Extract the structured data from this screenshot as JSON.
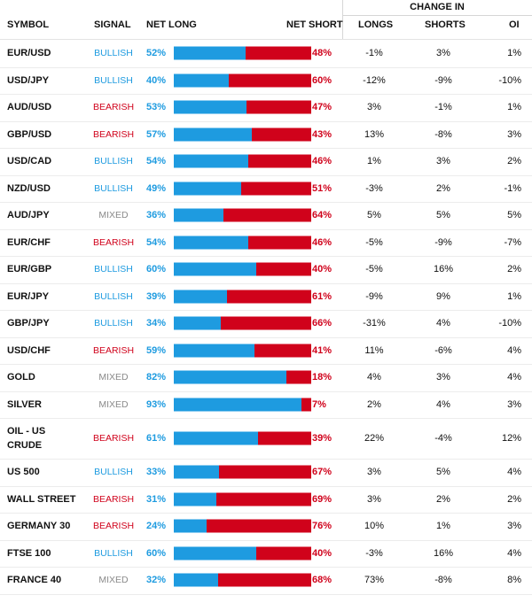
{
  "header": {
    "change_in": "CHANGE IN",
    "symbol": "SYMBOL",
    "signal": "SIGNAL",
    "net_long": "NET LONG",
    "net_short": "NET SHORT",
    "longs": "LONGS",
    "shorts": "SHORTS",
    "oi": "OI"
  },
  "colors": {
    "long": "#1e9be0",
    "short": "#d0021b",
    "bullish": "#1e9be0",
    "bearish": "#d0021b",
    "mixed": "#8a8a8a"
  },
  "rows": [
    {
      "symbol": "EUR/USD",
      "signal": "BULLISH",
      "net_long": "52%",
      "long_pct": 52,
      "net_short": "48%",
      "longs": "-1%",
      "shorts": "3%",
      "oi": "1%"
    },
    {
      "symbol": "USD/JPY",
      "signal": "BULLISH",
      "net_long": "40%",
      "long_pct": 40,
      "net_short": "60%",
      "longs": "-12%",
      "shorts": "-9%",
      "oi": "-10%"
    },
    {
      "symbol": "AUD/USD",
      "signal": "BEARISH",
      "net_long": "53%",
      "long_pct": 53,
      "net_short": "47%",
      "longs": "3%",
      "shorts": "-1%",
      "oi": "1%"
    },
    {
      "symbol": "GBP/USD",
      "signal": "BEARISH",
      "net_long": "57%",
      "long_pct": 57,
      "net_short": "43%",
      "longs": "13%",
      "shorts": "-8%",
      "oi": "3%"
    },
    {
      "symbol": "USD/CAD",
      "signal": "BULLISH",
      "net_long": "54%",
      "long_pct": 54,
      "net_short": "46%",
      "longs": "1%",
      "shorts": "3%",
      "oi": "2%"
    },
    {
      "symbol": "NZD/USD",
      "signal": "BULLISH",
      "net_long": "49%",
      "long_pct": 49,
      "net_short": "51%",
      "longs": "-3%",
      "shorts": "2%",
      "oi": "-1%"
    },
    {
      "symbol": "AUD/JPY",
      "signal": "MIXED",
      "net_long": "36%",
      "long_pct": 36,
      "net_short": "64%",
      "longs": "5%",
      "shorts": "5%",
      "oi": "5%"
    },
    {
      "symbol": "EUR/CHF",
      "signal": "BEARISH",
      "net_long": "54%",
      "long_pct": 54,
      "net_short": "46%",
      "longs": "-5%",
      "shorts": "-9%",
      "oi": "-7%"
    },
    {
      "symbol": "EUR/GBP",
      "signal": "BULLISH",
      "net_long": "60%",
      "long_pct": 60,
      "net_short": "40%",
      "longs": "-5%",
      "shorts": "16%",
      "oi": "2%"
    },
    {
      "symbol": "EUR/JPY",
      "signal": "BULLISH",
      "net_long": "39%",
      "long_pct": 39,
      "net_short": "61%",
      "longs": "-9%",
      "shorts": "9%",
      "oi": "1%"
    },
    {
      "symbol": "GBP/JPY",
      "signal": "BULLISH",
      "net_long": "34%",
      "long_pct": 34,
      "net_short": "66%",
      "longs": "-31%",
      "shorts": "4%",
      "oi": "-10%"
    },
    {
      "symbol": "USD/CHF",
      "signal": "BEARISH",
      "net_long": "59%",
      "long_pct": 59,
      "net_short": "41%",
      "longs": "11%",
      "shorts": "-6%",
      "oi": "4%"
    },
    {
      "symbol": "GOLD",
      "signal": "MIXED",
      "net_long": "82%",
      "long_pct": 82,
      "net_short": "18%",
      "longs": "4%",
      "shorts": "3%",
      "oi": "4%"
    },
    {
      "symbol": "SILVER",
      "signal": "MIXED",
      "net_long": "93%",
      "long_pct": 93,
      "net_short": "7%",
      "longs": "2%",
      "shorts": "4%",
      "oi": "3%"
    },
    {
      "symbol": "OIL - US CRUDE",
      "signal": "BEARISH",
      "net_long": "61%",
      "long_pct": 61,
      "net_short": "39%",
      "longs": "22%",
      "shorts": "-4%",
      "oi": "12%"
    },
    {
      "symbol": "US 500",
      "signal": "BULLISH",
      "net_long": "33%",
      "long_pct": 33,
      "net_short": "67%",
      "longs": "3%",
      "shorts": "5%",
      "oi": "4%"
    },
    {
      "symbol": "WALL STREET",
      "signal": "BEARISH",
      "net_long": "31%",
      "long_pct": 31,
      "net_short": "69%",
      "longs": "3%",
      "shorts": "2%",
      "oi": "2%"
    },
    {
      "symbol": "GERMANY 30",
      "signal": "BEARISH",
      "net_long": "24%",
      "long_pct": 24,
      "net_short": "76%",
      "longs": "10%",
      "shorts": "1%",
      "oi": "3%"
    },
    {
      "symbol": "FTSE 100",
      "signal": "BULLISH",
      "net_long": "60%",
      "long_pct": 60,
      "net_short": "40%",
      "longs": "-3%",
      "shorts": "16%",
      "oi": "4%"
    },
    {
      "symbol": "FRANCE 40",
      "signal": "MIXED",
      "net_long": "32%",
      "long_pct": 32,
      "net_short": "68%",
      "longs": "73%",
      "shorts": "-8%",
      "oi": "8%"
    }
  ]
}
